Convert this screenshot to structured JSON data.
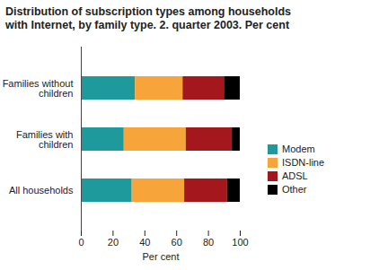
{
  "chart_data": {
    "type": "bar",
    "title": "Distribution of subscription types among households with Internet, by family type. 2. quarter 2003. Per cent",
    "orientation": "horizontal",
    "stacked": true,
    "grid": false,
    "legend": "right",
    "categories": [
      "Families without children",
      "Families with children",
      "All households"
    ],
    "series": [
      {
        "name": "Modem",
        "color": "#1f9a9c",
        "values": [
          34,
          27,
          32
        ]
      },
      {
        "name": "ISDN-line",
        "color": "#f7a43a",
        "values": [
          30,
          39,
          33
        ]
      },
      {
        "name": "ADSL",
        "color": "#a3171d",
        "values": [
          26,
          29,
          27
        ]
      },
      {
        "name": "Other",
        "color": "#000000",
        "values": [
          10,
          5,
          8
        ]
      }
    ],
    "x_label": "Per cent",
    "xlim": [
      0,
      100
    ],
    "xticks": [
      0,
      20,
      40,
      60,
      80,
      100
    ]
  }
}
